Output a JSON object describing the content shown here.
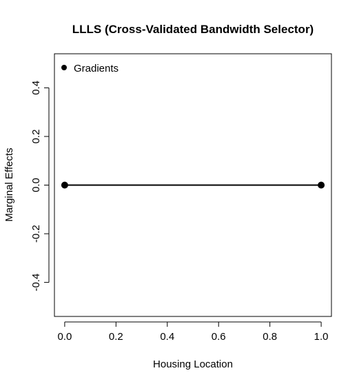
{
  "chart_data": {
    "type": "line",
    "title": "LLLS (Cross-Validated Bandwidth Selector)",
    "xlabel": "Housing Location",
    "ylabel": "Marginal Effects",
    "xlim": [
      -0.04,
      1.04
    ],
    "ylim": [
      -0.54,
      0.54
    ],
    "xticks": [
      0.0,
      0.2,
      0.4,
      0.6,
      0.8,
      1.0
    ],
    "xtick_labels": [
      "0.0",
      "0.2",
      "0.4",
      "0.6",
      "0.8",
      "1.0"
    ],
    "yticks": [
      -0.4,
      -0.2,
      0.0,
      0.2,
      0.4
    ],
    "ytick_labels": [
      "-0.4",
      "-0.2",
      "0.0",
      "0.2",
      "0.4"
    ],
    "series": [
      {
        "name": "Gradients",
        "x": [
          0.0,
          1.0
        ],
        "y": [
          0.0,
          0.0
        ],
        "marker": "filled-circle",
        "color": "#000000"
      }
    ],
    "legend": {
      "position": "top-left",
      "entries": [
        "Gradients"
      ]
    },
    "grid": false
  }
}
